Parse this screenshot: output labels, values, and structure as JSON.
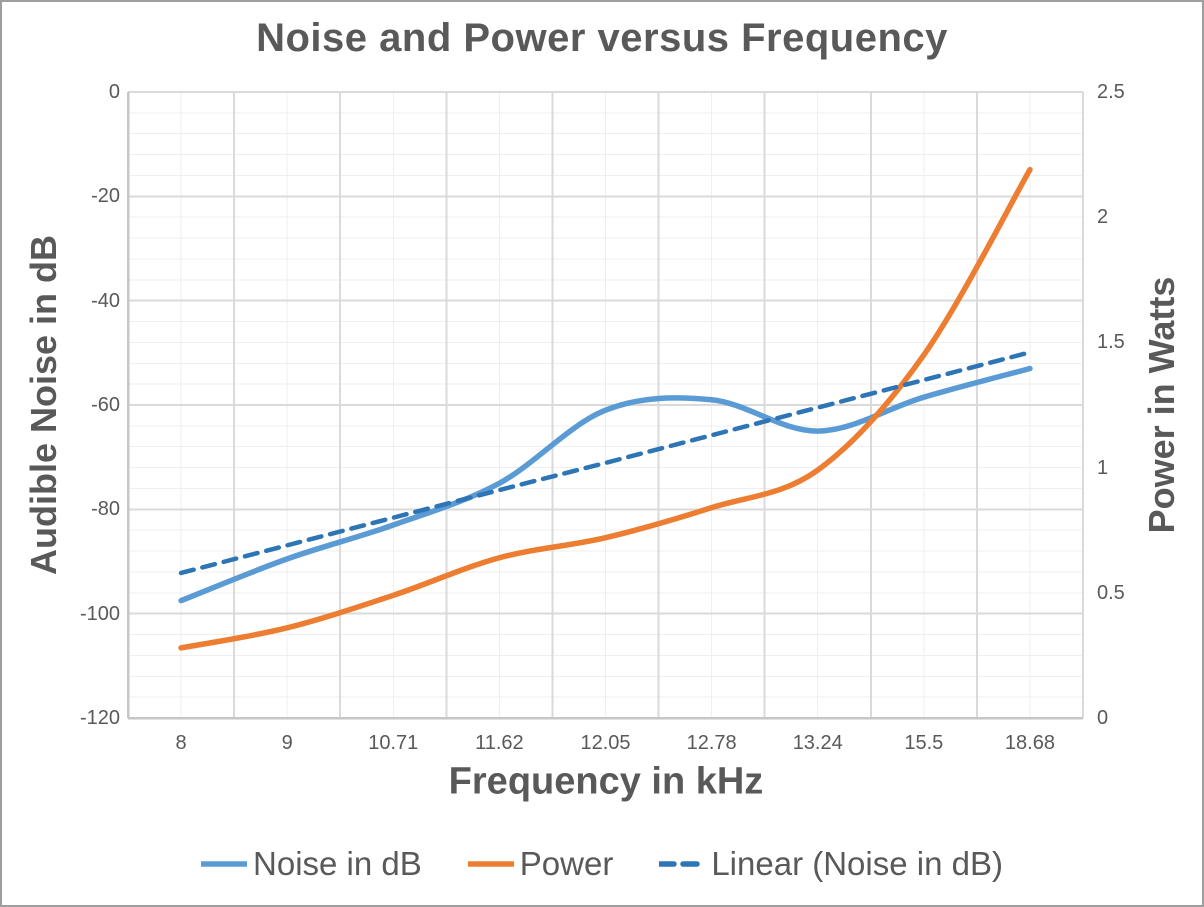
{
  "chart_data": {
    "type": "line",
    "title": "Noise and Power versus Frequency",
    "xlabel": "Frequency in kHz",
    "ylabel_left": "Audible Noise in dB",
    "ylabel_right": "Power in Watts",
    "categories": [
      "8",
      "9",
      "10.71",
      "11.62",
      "12.05",
      "12.78",
      "13.24",
      "15.5",
      "18.68"
    ],
    "left_axis": {
      "ticks": [
        "0",
        "-20",
        "-40",
        "-60",
        "-80",
        "-100",
        "-120"
      ],
      "range": [
        0,
        -120
      ],
      "major_unit": 20,
      "minor_unit": 4
    },
    "right_axis": {
      "ticks": [
        "2.5",
        "2",
        "1.5",
        "1",
        "0.5",
        "0"
      ],
      "range": [
        2.5,
        0
      ],
      "major_unit": 0.5
    },
    "series": [
      {
        "name": "Noise in dB",
        "axis": "left",
        "color": "#5B9BD5",
        "dash": "solid",
        "smooth": true,
        "values": [
          -97.5,
          -89.5,
          -83,
          -75,
          -61,
          -59,
          -65,
          -58.5,
          -53
        ]
      },
      {
        "name": "Power",
        "axis": "right",
        "color": "#ED7D31",
        "dash": "solid",
        "smooth": true,
        "values": [
          0.28,
          0.36,
          0.49,
          0.64,
          0.72,
          0.84,
          0.99,
          1.45,
          2.19
        ]
      },
      {
        "name": "Linear (Noise in dB)",
        "axis": "left",
        "color": "#2E75B6",
        "dash": "dashed",
        "smooth": false,
        "values": [
          -92.2,
          -86.9,
          -81.6,
          -76.3,
          -71.1,
          -65.8,
          -60.5,
          -55.2,
          -49.9
        ]
      }
    ],
    "legend_position": "bottom",
    "grid": true
  },
  "colors": {
    "text": "#595959",
    "grid_major": "#DADADA",
    "grid_minor": "#EFEFEF",
    "axis_line": "#C6C6C6",
    "frame_border": "#9E9E9E",
    "background": "#FFFFFF"
  }
}
